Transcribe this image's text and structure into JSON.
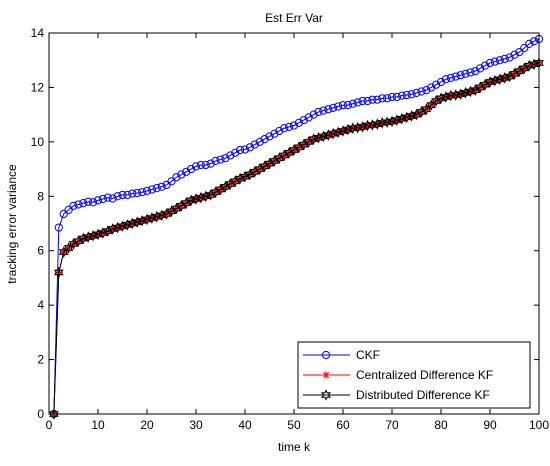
{
  "chart_data": {
    "type": "line",
    "title": "Est Err Var",
    "xlabel": "time k",
    "ylabel": "tracking error variance",
    "xlim": [
      0,
      100
    ],
    "ylim": [
      0,
      14
    ],
    "xticks": [
      0,
      10,
      20,
      30,
      40,
      50,
      60,
      70,
      80,
      90,
      100
    ],
    "yticks": [
      0,
      2,
      4,
      6,
      8,
      10,
      12,
      14
    ],
    "grid": false,
    "legend_position": "bottom-right",
    "series": [
      {
        "name": "CKF",
        "color": "#0000ff",
        "marker": "circle",
        "x": [
          1,
          2,
          3,
          4,
          5,
          6,
          7,
          8,
          9,
          10,
          11,
          12,
          13,
          14,
          15,
          16,
          17,
          18,
          19,
          20,
          21,
          22,
          23,
          24,
          25,
          26,
          27,
          28,
          29,
          30,
          31,
          32,
          33,
          34,
          35,
          36,
          37,
          38,
          39,
          40,
          41,
          42,
          43,
          44,
          45,
          46,
          47,
          48,
          49,
          50,
          51,
          52,
          53,
          54,
          55,
          56,
          57,
          58,
          59,
          60,
          61,
          62,
          63,
          64,
          65,
          66,
          67,
          68,
          69,
          70,
          71,
          72,
          73,
          74,
          75,
          76,
          77,
          78,
          79,
          80,
          81,
          82,
          83,
          84,
          85,
          86,
          87,
          88,
          89,
          90,
          91,
          92,
          93,
          94,
          95,
          96,
          97,
          98,
          99,
          100
        ],
        "y": [
          0,
          6.85,
          7.35,
          7.5,
          7.65,
          7.7,
          7.75,
          7.8,
          7.78,
          7.85,
          7.9,
          7.95,
          7.92,
          8.0,
          8.05,
          8.05,
          8.1,
          8.12,
          8.15,
          8.2,
          8.25,
          8.3,
          8.35,
          8.42,
          8.55,
          8.7,
          8.8,
          8.9,
          9.0,
          9.1,
          9.15,
          9.15,
          9.2,
          9.3,
          9.35,
          9.4,
          9.5,
          9.6,
          9.7,
          9.72,
          9.8,
          9.9,
          10.0,
          10.1,
          10.2,
          10.3,
          10.4,
          10.5,
          10.55,
          10.6,
          10.7,
          10.8,
          10.9,
          11.0,
          11.1,
          11.15,
          11.2,
          11.25,
          11.3,
          11.35,
          11.35,
          11.4,
          11.45,
          11.5,
          11.5,
          11.55,
          11.55,
          11.6,
          11.6,
          11.65,
          11.65,
          11.7,
          11.72,
          11.75,
          11.8,
          11.85,
          11.9,
          12.0,
          12.1,
          12.2,
          12.3,
          12.35,
          12.4,
          12.45,
          12.5,
          12.55,
          12.6,
          12.7,
          12.8,
          12.9,
          12.95,
          13.0,
          13.05,
          13.1,
          13.2,
          13.3,
          13.45,
          13.6,
          13.7,
          13.78
        ]
      },
      {
        "name": "Centralized Difference KF",
        "color": "#ff0000",
        "marker": "asterisk",
        "x": [
          1,
          2,
          3,
          4,
          5,
          6,
          7,
          8,
          9,
          10,
          11,
          12,
          13,
          14,
          15,
          16,
          17,
          18,
          19,
          20,
          21,
          22,
          23,
          24,
          25,
          26,
          27,
          28,
          29,
          30,
          31,
          32,
          33,
          34,
          35,
          36,
          37,
          38,
          39,
          40,
          41,
          42,
          43,
          44,
          45,
          46,
          47,
          48,
          49,
          50,
          51,
          52,
          53,
          54,
          55,
          56,
          57,
          58,
          59,
          60,
          61,
          62,
          63,
          64,
          65,
          66,
          67,
          68,
          69,
          70,
          71,
          72,
          73,
          74,
          75,
          76,
          77,
          78,
          79,
          80,
          81,
          82,
          83,
          84,
          85,
          86,
          87,
          88,
          89,
          90,
          91,
          92,
          93,
          94,
          95,
          96,
          97,
          98,
          99,
          100
        ],
        "y": [
          0,
          5.2,
          5.95,
          6.1,
          6.25,
          6.35,
          6.45,
          6.5,
          6.55,
          6.6,
          6.65,
          6.72,
          6.8,
          6.85,
          6.9,
          6.95,
          7.0,
          7.05,
          7.1,
          7.15,
          7.2,
          7.25,
          7.3,
          7.35,
          7.45,
          7.55,
          7.65,
          7.75,
          7.85,
          7.9,
          7.95,
          8.0,
          8.05,
          8.15,
          8.25,
          8.35,
          8.45,
          8.55,
          8.65,
          8.72,
          8.8,
          8.9,
          9.0,
          9.1,
          9.2,
          9.3,
          9.4,
          9.5,
          9.6,
          9.7,
          9.8,
          9.9,
          10.0,
          10.1,
          10.15,
          10.2,
          10.25,
          10.3,
          10.35,
          10.4,
          10.45,
          10.5,
          10.52,
          10.55,
          10.6,
          10.62,
          10.65,
          10.7,
          10.72,
          10.75,
          10.8,
          10.85,
          10.9,
          10.95,
          11.0,
          11.1,
          11.2,
          11.35,
          11.5,
          11.6,
          11.65,
          11.7,
          11.72,
          11.75,
          11.8,
          11.85,
          11.9,
          12.0,
          12.1,
          12.2,
          12.25,
          12.3,
          12.35,
          12.4,
          12.5,
          12.6,
          12.7,
          12.8,
          12.85,
          12.9
        ]
      },
      {
        "name": "Distributed Difference KF",
        "color": "#000000",
        "marker": "hexagram",
        "x": [
          1,
          2,
          3,
          4,
          5,
          6,
          7,
          8,
          9,
          10,
          11,
          12,
          13,
          14,
          15,
          16,
          17,
          18,
          19,
          20,
          21,
          22,
          23,
          24,
          25,
          26,
          27,
          28,
          29,
          30,
          31,
          32,
          33,
          34,
          35,
          36,
          37,
          38,
          39,
          40,
          41,
          42,
          43,
          44,
          45,
          46,
          47,
          48,
          49,
          50,
          51,
          52,
          53,
          54,
          55,
          56,
          57,
          58,
          59,
          60,
          61,
          62,
          63,
          64,
          65,
          66,
          67,
          68,
          69,
          70,
          71,
          72,
          73,
          74,
          75,
          76,
          77,
          78,
          79,
          80,
          81,
          82,
          83,
          84,
          85,
          86,
          87,
          88,
          89,
          90,
          91,
          92,
          93,
          94,
          95,
          96,
          97,
          98,
          99,
          100
        ],
        "y": [
          0,
          5.2,
          5.95,
          6.1,
          6.25,
          6.35,
          6.45,
          6.5,
          6.55,
          6.6,
          6.65,
          6.72,
          6.8,
          6.85,
          6.9,
          6.95,
          7.0,
          7.05,
          7.1,
          7.15,
          7.2,
          7.25,
          7.3,
          7.35,
          7.45,
          7.55,
          7.65,
          7.75,
          7.85,
          7.9,
          7.95,
          8.0,
          8.05,
          8.15,
          8.25,
          8.35,
          8.45,
          8.55,
          8.65,
          8.72,
          8.8,
          8.9,
          9.0,
          9.1,
          9.2,
          9.3,
          9.4,
          9.5,
          9.6,
          9.7,
          9.8,
          9.9,
          10.0,
          10.1,
          10.15,
          10.2,
          10.25,
          10.3,
          10.35,
          10.4,
          10.45,
          10.5,
          10.52,
          10.55,
          10.6,
          10.62,
          10.65,
          10.7,
          10.72,
          10.75,
          10.8,
          10.85,
          10.9,
          10.95,
          11.0,
          11.1,
          11.2,
          11.35,
          11.5,
          11.6,
          11.65,
          11.7,
          11.72,
          11.75,
          11.8,
          11.85,
          11.9,
          12.0,
          12.1,
          12.2,
          12.25,
          12.3,
          12.35,
          12.4,
          12.5,
          12.6,
          12.7,
          12.8,
          12.85,
          12.9
        ]
      }
    ]
  }
}
